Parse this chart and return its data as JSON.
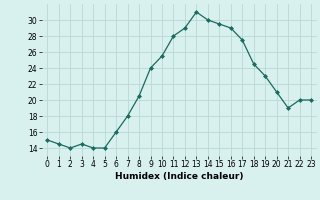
{
  "x": [
    0,
    1,
    2,
    3,
    4,
    5,
    6,
    7,
    8,
    9,
    10,
    11,
    12,
    13,
    14,
    15,
    16,
    17,
    18,
    19,
    20,
    21,
    22,
    23
  ],
  "y": [
    15.0,
    14.5,
    14.0,
    14.5,
    14.0,
    14.0,
    16.0,
    18.0,
    20.5,
    24.0,
    25.5,
    28.0,
    29.0,
    31.0,
    30.0,
    29.5,
    29.0,
    27.5,
    24.5,
    23.0,
    21.0,
    19.0,
    20.0,
    20.0
  ],
  "line_color": "#1a6b60",
  "marker": "D",
  "marker_size": 2,
  "bg_color": "#d8f0ee",
  "grid_color": "#b8d8d4",
  "xlabel": "Humidex (Indice chaleur)",
  "ylim": [
    13,
    32
  ],
  "yticks": [
    14,
    16,
    18,
    20,
    22,
    24,
    26,
    28,
    30
  ],
  "xlim": [
    -0.5,
    23.5
  ],
  "xticks": [
    0,
    1,
    2,
    3,
    4,
    5,
    6,
    7,
    8,
    9,
    10,
    11,
    12,
    13,
    14,
    15,
    16,
    17,
    18,
    19,
    20,
    21,
    22,
    23
  ],
  "tick_fontsize": 5.5,
  "xlabel_fontsize": 6.5
}
